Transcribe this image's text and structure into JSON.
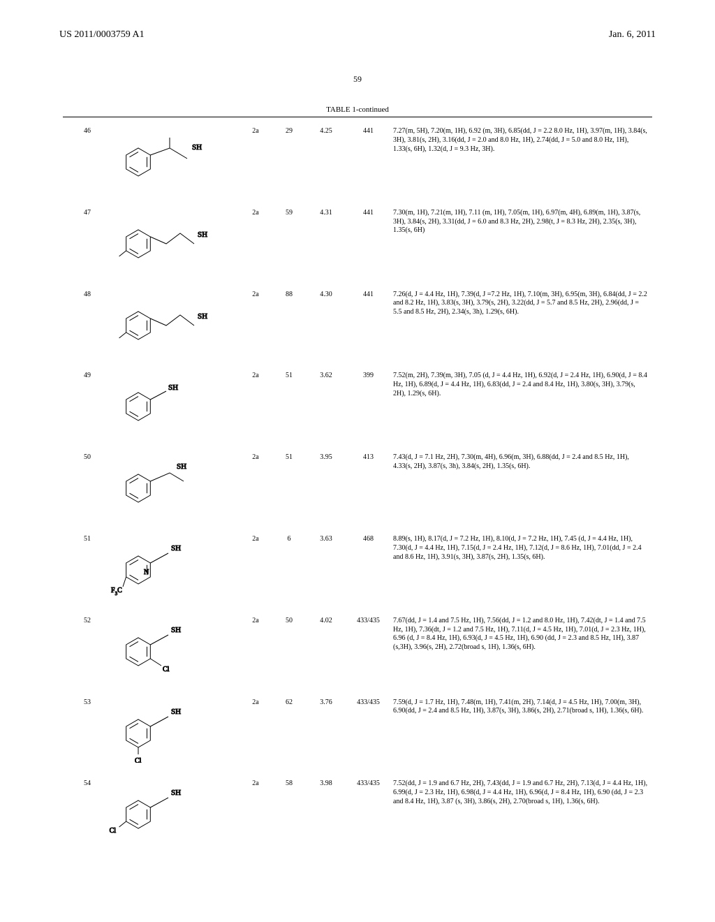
{
  "header": {
    "patent_no": "US 2011/0003759 A1",
    "pub_date": "Jan. 6, 2011",
    "page_no": "59"
  },
  "table": {
    "title": "TABLE 1-continued",
    "rows": [
      {
        "num": "46",
        "struct_label": "SH",
        "proc": "2a",
        "yield": "29",
        "rt": "4.25",
        "mh": "441",
        "nmr": "7.27(m, 5H), 7.20(m, 1H), 6.92 (m, 3H), 6.85(dd, J = 2.2 8.0 Hz, 1H), 3.97(m, 1H), 3.84(s, 3H), 3.81(s, 2H), 3.16(dd, J = 2.0 and 8.0 Hz, 1H), 2.74(dd, J = 5.0 and 8.0 Hz, 1H), 1.33(s, 6H), 1.32(d, J = 9.3 Hz, 3H)."
      },
      {
        "num": "47",
        "struct_label": "SH",
        "proc": "2a",
        "yield": "59",
        "rt": "4.31",
        "mh": "441",
        "nmr": "7.30(m, 1H), 7.21(m, 1H), 7.11 (m, 1H), 7.05(m, 1H), 6.97(m, 4H), 6.89(m, 1H), 3.87(s, 3H), 3.84(s, 2H), 3.31(dd, J = 6.0 and 8.3 Hz, 2H), 2.98(t, J = 8.3 Hz, 2H), 2.35(s, 3H), 1.35(s, 6H)"
      },
      {
        "num": "48",
        "struct_label": "SH",
        "proc": "2a",
        "yield": "88",
        "rt": "4.30",
        "mh": "441",
        "nmr": "7.26(d, J = 4.4 Hz, 1H), 7.39(d, J =7.2 Hz, 1H), 7.10(m, 3H), 6.95(m, 3H), 6.84(dd, J = 2.2 and 8.2 Hz, 1H), 3.83(s, 3H), 3.79(s, 2H), 3.22(dd, J = 5.7 and 8.5 Hz, 2H), 2.96(dd, J = 5.5 and 8.5 Hz, 2H), 2.34(s, 3h), 1.29(s, 6H)."
      },
      {
        "num": "49",
        "struct_label": "SH",
        "proc": "2a",
        "yield": "51",
        "rt": "3.62",
        "mh": "399",
        "nmr": "7.52(m, 2H), 7.39(m, 3H), 7.05 (d, J = 4.4 Hz, 1H), 6.92(d, J = 2.4 Hz, 1H), 6.90(d, J = 8.4 Hz, 1H), 6.89(d, J = 4.4 Hz, 1H), 6.83(dd, J = 2.4 and 8.4 Hz, 1H), 3.80(s, 3H), 3.79(s, 2H), 1.29(s, 6H)."
      },
      {
        "num": "50",
        "struct_label": "SH",
        "proc": "2a",
        "yield": "51",
        "rt": "3.95",
        "mh": "413",
        "nmr": "7.43(d, J = 7.1 Hz, 2H), 7.30(m, 4H), 6.96(m, 3H), 6.88(dd, J = 2.4 and 8.5 Hz, 1H), 4.33(s, 2H), 3.87(s, 3h), 3.84(s, 2H), 1.35(s, 6H)."
      },
      {
        "num": "51",
        "struct_label": "SH",
        "sub_label": "F₃C",
        "proc": "2a",
        "yield": "6",
        "rt": "3.63",
        "mh": "468",
        "nmr": "8.89(s, 1H), 8.17(d, J = 7.2 Hz, 1H), 8.10(d, J = 7.2 Hz, 1H), 7.45 (d, J = 4.4 Hz, 1H), 7.30(d, J = 4.4 Hz, 1H), 7.15(d, J = 2.4 Hz, 1H), 7.12(d, J = 8.6 Hz, 1H), 7.01(dd, J = 2.4 and 8.6 Hz, 1H), 3.91(s, 3H), 3.87(s, 2H), 1.35(s, 6H)."
      },
      {
        "num": "52",
        "struct_label": "SH",
        "sub_label": "Cl",
        "proc": "2a",
        "yield": "50",
        "rt": "4.02",
        "mh": "433/435",
        "nmr": "7.67(dd, J = 1.4 and 7.5 Hz, 1H), 7.56(dd, J = 1.2 and 8.0 Hz, 1H), 7.42(dt, J = 1.4 and 7.5 Hz, 1H), 7.36(dt, J = 1.2 and 7.5 Hz, 1H), 7.11(d, J = 4.5 Hz, 1H), 7.01(d, J = 2.3 Hz, 1H), 6.96 (d, J = 8.4 Hz, 1H), 6.93(d, J = 4.5 Hz, 1H), 6.90 (dd, J = 2.3 and 8.5 Hz, 1H), 3.87 (s,3H), 3.96(s, 2H), 2.72(broad s, 1H), 1.36(s, 6H)."
      },
      {
        "num": "53",
        "struct_label": "SH",
        "sub_label": "Cl",
        "proc": "2a",
        "yield": "62",
        "rt": "3.76",
        "mh": "433/435",
        "nmr": "7.59(d, J = 1.7 Hz, 1H), 7.48(m, 1H), 7.41(m, 2H), 7.14(d, J = 4.5 Hz, 1H), 7.00(m, 3H), 6.90(dd, J = 2.4 and 8.5 Hz, 1H), 3.87(s, 3H), 3.86(s, 2H), 2.71(broad s, 1H), 1.36(s, 6H)."
      },
      {
        "num": "54",
        "struct_label": "SH",
        "sub_label": "Cl",
        "proc": "2a",
        "yield": "58",
        "rt": "3.98",
        "mh": "433/435",
        "nmr": "7.52(dd, J = 1.9 and 6.7 Hz, 2H), 7.43(dd, J = 1.9 and 6.7 Hz, 2H), 7.13(d, J = 4.4 Hz, 1H), 6.99(d, J = 2.3 Hz, 1H), 6.98(d, J = 4.4 Hz, 1H), 6.96(d, J = 8.4 Hz, 1H), 6.90 (dd, J = 2.3 and 8.4 Hz, 1H), 3.87 (s, 3H), 3.86(s, 2H), 2.70(broad s, 1H), 1.36(s, 6H)."
      }
    ]
  },
  "svg_variants": {
    "46": "benzyl-ch-sh-me",
    "47": "tolyl-ch2ch2-sh",
    "48": "tolyl-ch2ch2-sh-ortho",
    "49": "phenyl-sh",
    "50": "benzyl-sh",
    "51": "cf3-pyridyl-sh",
    "52": "ocl-phenyl-sh",
    "53": "mcl-phenyl-sh",
    "54": "pcl-phenyl-sh"
  }
}
